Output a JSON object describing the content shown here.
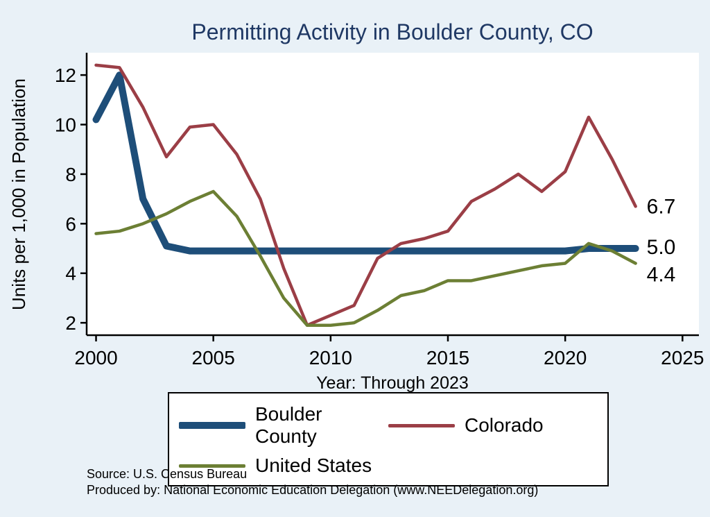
{
  "title": "Permitting Activity in Boulder County, CO",
  "ylabel": "Units per 1,000 in Population",
  "xlabel": "Year: Through 2023",
  "source_line1": "Source: U.S. Census Bureau",
  "source_line2": "Produced by: National Economic Education Delegation (www.NEEDelegation.org)",
  "colors": {
    "background": "#e9f1f7",
    "plot_background": "#ffffff",
    "title": "#1f3864",
    "axis": "#000000",
    "boulder_county": "#1e4e79",
    "colorado": "#9b3e46",
    "united_states": "#6c7f34"
  },
  "chart_data": {
    "type": "line",
    "title": "Permitting Activity in Boulder County, CO",
    "xlabel": "Year: Through 2023",
    "ylabel": "Units per 1,000 in Population",
    "xlim": [
      1999.6,
      2025.7
    ],
    "ylim": [
      1.5,
      12.9
    ],
    "x_ticks": [
      2000,
      2005,
      2010,
      2015,
      2020,
      2025
    ],
    "y_ticks": [
      2,
      4,
      6,
      8,
      10,
      12
    ],
    "grid": false,
    "legend_position": "bottom",
    "x": [
      2000,
      2001,
      2002,
      2003,
      2004,
      2005,
      2006,
      2007,
      2008,
      2009,
      2010,
      2011,
      2012,
      2013,
      2014,
      2015,
      2016,
      2017,
      2018,
      2019,
      2020,
      2021,
      2022,
      2023
    ],
    "series": [
      {
        "name": "Boulder County",
        "color_key": "boulder_county",
        "stroke_width": 10,
        "end_label": "5.0",
        "values": [
          10.2,
          12.0,
          7.0,
          5.1,
          4.9,
          4.9,
          4.9,
          4.9,
          4.9,
          4.9,
          4.9,
          4.9,
          4.9,
          4.9,
          4.9,
          4.9,
          4.9,
          4.9,
          4.9,
          4.9,
          4.9,
          5.0,
          5.0,
          5.0
        ]
      },
      {
        "name": "Colorado",
        "color_key": "colorado",
        "stroke_width": 4.5,
        "end_label": "6.7",
        "values": [
          12.4,
          12.3,
          10.7,
          8.7,
          9.9,
          10.0,
          8.8,
          7.0,
          4.2,
          1.9,
          2.3,
          2.7,
          4.6,
          5.2,
          5.4,
          5.7,
          6.9,
          7.4,
          8.0,
          7.3,
          8.1,
          10.3,
          8.6,
          6.7
        ]
      },
      {
        "name": "United States",
        "color_key": "united_states",
        "stroke_width": 4.5,
        "end_label": "4.4",
        "values": [
          5.6,
          5.7,
          6.0,
          6.4,
          6.9,
          7.3,
          6.3,
          4.7,
          3.0,
          1.9,
          1.9,
          2.0,
          2.5,
          3.1,
          3.3,
          3.7,
          3.7,
          3.9,
          4.1,
          4.3,
          4.4,
          5.2,
          4.9,
          4.4
        ]
      }
    ]
  },
  "legend": {
    "items": [
      {
        "label": "Boulder County"
      },
      {
        "label": "Colorado"
      },
      {
        "label": "United States"
      }
    ]
  }
}
